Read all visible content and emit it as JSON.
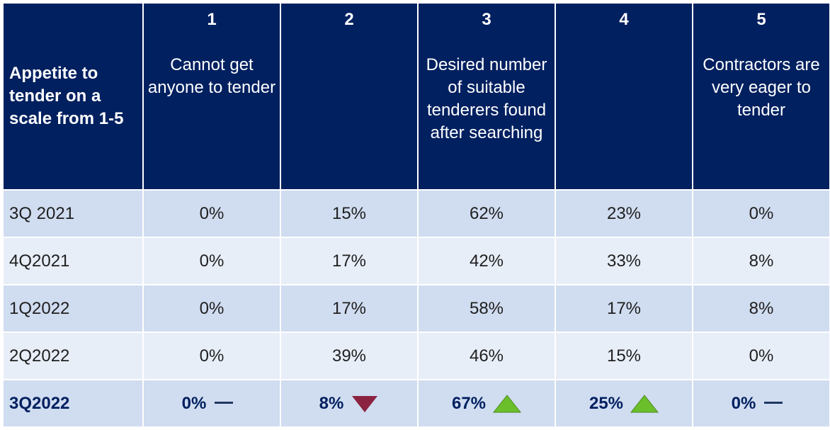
{
  "header": {
    "row_label": "Appetite to tender on a scale from 1-5",
    "columns": [
      {
        "num": "1",
        "desc": "Cannot get anyone to tender"
      },
      {
        "num": "2",
        "desc": ""
      },
      {
        "num": "3",
        "desc": "Desired number of suitable tenderers found after searching"
      },
      {
        "num": "4",
        "desc": ""
      },
      {
        "num": "5",
        "desc": "Contractors are very eager to tender"
      }
    ]
  },
  "rows": [
    {
      "label": "3Q 2021",
      "values": [
        "0%",
        "15%",
        "62%",
        "23%",
        "0%"
      ]
    },
    {
      "label": "4Q2021",
      "values": [
        "0%",
        "17%",
        "42%",
        "33%",
        "8%"
      ]
    },
    {
      "label": "1Q2022",
      "values": [
        "0%",
        "17%",
        "58%",
        "17%",
        "8%"
      ]
    },
    {
      "label": "2Q2022",
      "values": [
        "0%",
        "39%",
        "46%",
        "15%",
        "0%"
      ]
    },
    {
      "label": "3Q2022",
      "values": [
        "0%",
        "8%",
        "67%",
        "25%",
        "0%"
      ]
    }
  ],
  "latest_indicators": [
    "flat",
    "down",
    "up",
    "up",
    "flat"
  ],
  "colors": {
    "header_bg": "#002060",
    "row_band_dark": "#d0dcf0",
    "row_band_light": "#e8eef8",
    "up_arrow": "#6bbf2a",
    "down_arrow": "#8b2340",
    "flat_dash": "#1f3864"
  },
  "chart_data": {
    "type": "table",
    "columns": [
      "1",
      "2",
      "3",
      "4",
      "5"
    ],
    "rows": [
      "3Q 2021",
      "4Q2021",
      "1Q2022",
      "2Q2022",
      "3Q2022"
    ],
    "values": [
      [
        0,
        15,
        62,
        23,
        0
      ],
      [
        0,
        17,
        42,
        33,
        8
      ],
      [
        0,
        17,
        58,
        17,
        8
      ],
      [
        0,
        39,
        46,
        15,
        0
      ],
      [
        0,
        8,
        67,
        25,
        0
      ]
    ],
    "unit": "%"
  }
}
